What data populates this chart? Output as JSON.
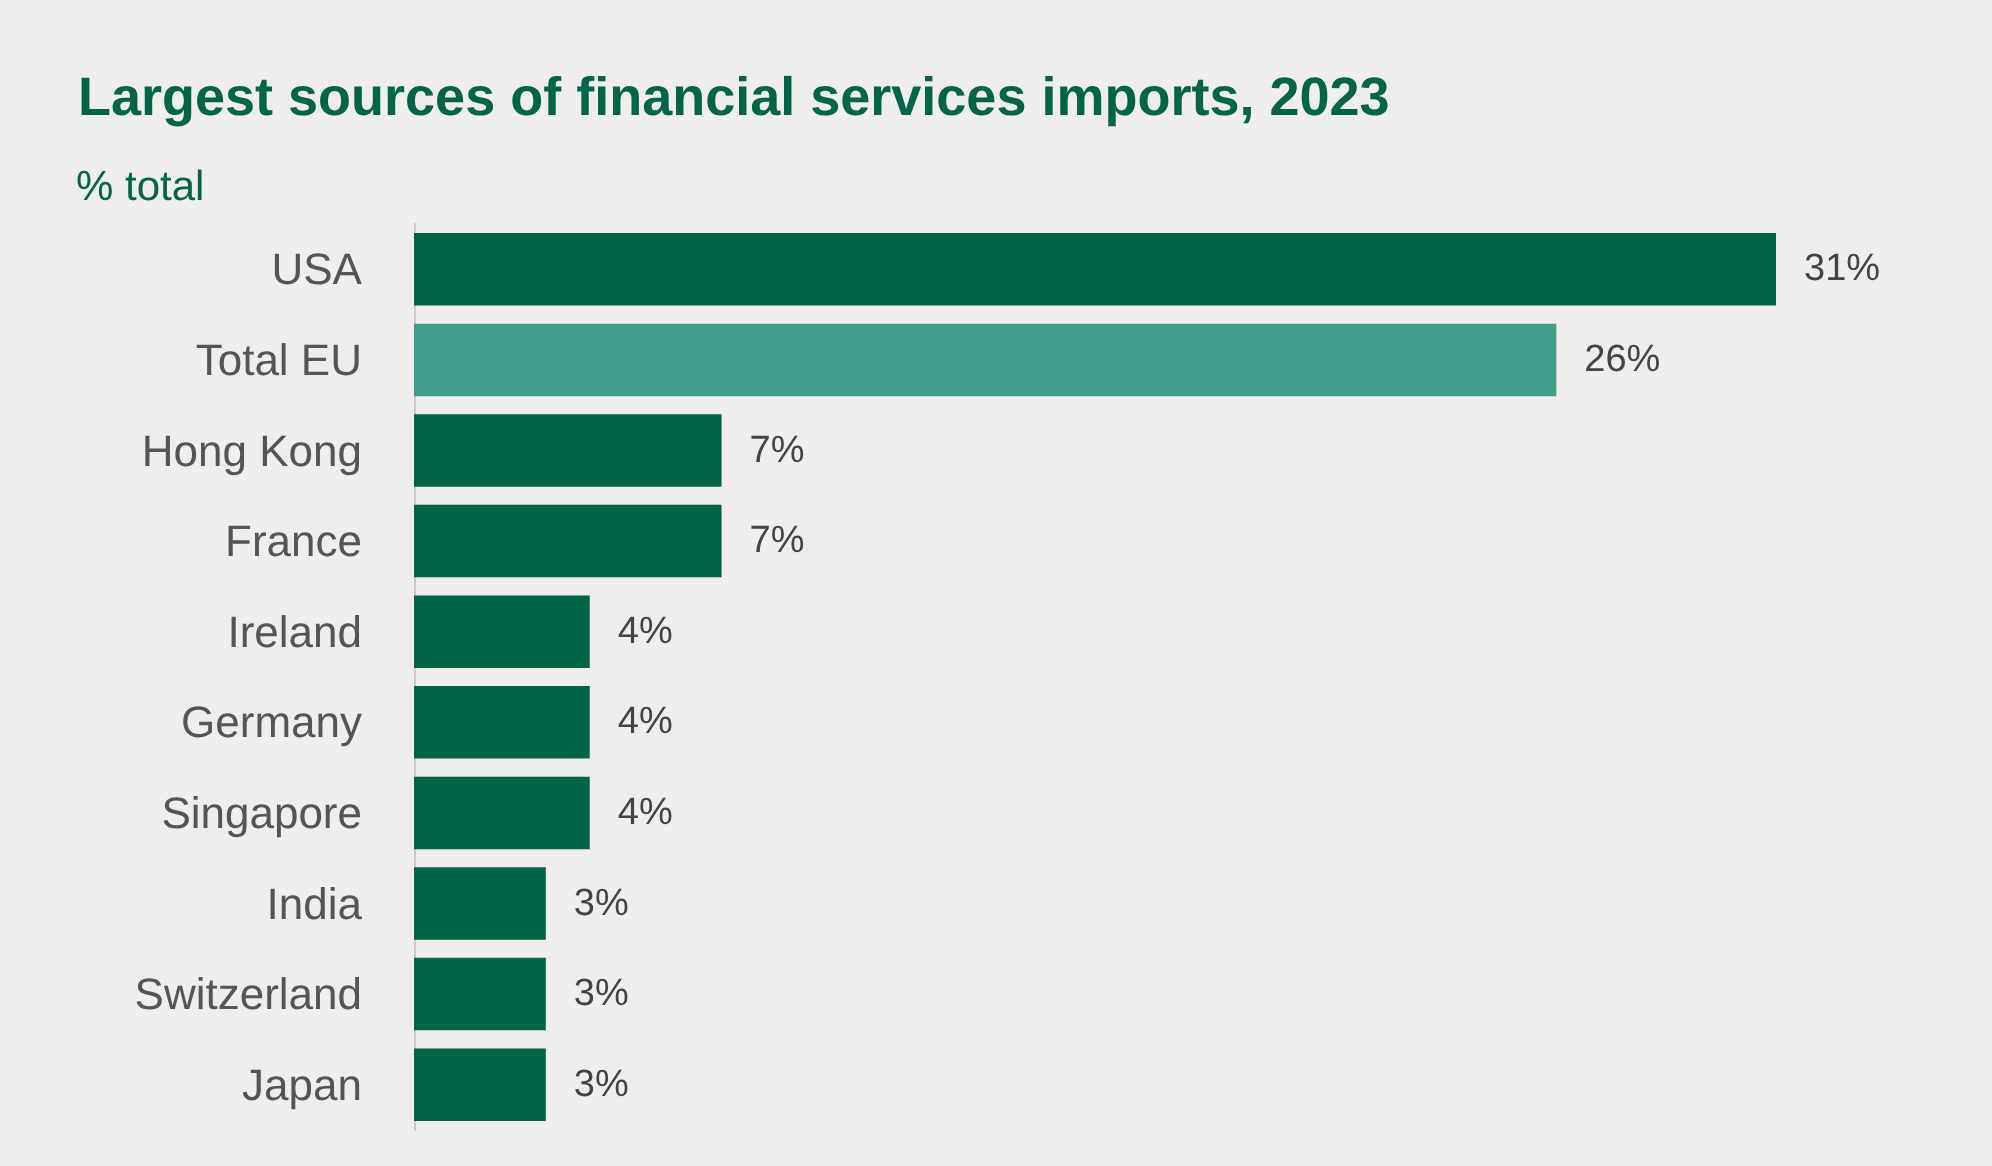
{
  "chart_data": {
    "type": "bar",
    "orientation": "horizontal",
    "title": "Largest sources of financial services imports, 2023",
    "subtitle": "% total",
    "categories": [
      "USA",
      "Total EU",
      "Hong Kong",
      "France",
      "Ireland",
      "Germany",
      "Singapore",
      "India",
      "Switzerland",
      "Japan"
    ],
    "values": [
      31,
      26,
      7,
      7,
      4,
      4,
      4,
      3,
      3,
      3
    ],
    "colors": [
      "#006548",
      "#409e8a",
      "#006548",
      "#006548",
      "#006548",
      "#006548",
      "#006548",
      "#006548",
      "#006548",
      "#006548"
    ],
    "value_labels": [
      "31%",
      "26%",
      "7%",
      "7%",
      "4%",
      "4%",
      "4%",
      "3%",
      "3%",
      "3%"
    ]
  }
}
